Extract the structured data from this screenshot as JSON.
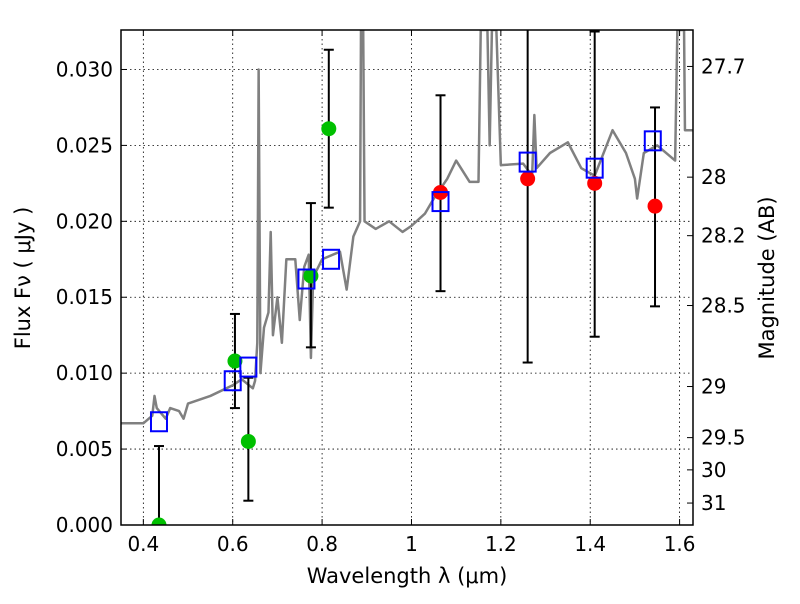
{
  "chart_data": {
    "type": "scatter",
    "xlabel": "Wavelength  λ (μm)",
    "ylabel": "Flux  Fν  ( μJy )",
    "ylabel_right": "Magnitude (AB)",
    "xlim": [
      0.35,
      1.63
    ],
    "ylim": [
      0,
      0.0326
    ],
    "grid": true,
    "x_ticks": [
      0.4,
      0.6,
      0.8,
      1.0,
      1.2,
      1.4,
      1.6
    ],
    "x_tick_labels": [
      "0.4",
      "0.6",
      "0.8",
      "1",
      "1.2",
      "1.4",
      "1.6"
    ],
    "y_ticks": [
      0,
      0.005,
      0.01,
      0.015,
      0.02,
      0.025,
      0.03
    ],
    "y_tick_labels": [
      "0.000",
      "0.005",
      "0.010",
      "0.015",
      "0.020",
      "0.025",
      "0.030"
    ],
    "right_ticks": [
      27.7,
      28,
      28.2,
      28.5,
      29,
      29.5,
      30,
      31
    ],
    "right_tick_labels": [
      "27.7",
      "28",
      "28.2",
      "28.5",
      "29",
      "29.5",
      "30",
      "31"
    ],
    "spectrum": {
      "name": "model spectrum",
      "color": "#808080",
      "x": [
        0.35,
        0.4,
        0.42,
        0.425,
        0.43,
        0.45,
        0.46,
        0.48,
        0.49,
        0.5,
        0.55,
        0.6,
        0.62,
        0.645,
        0.65,
        0.655,
        0.658,
        0.662,
        0.67,
        0.68,
        0.685,
        0.69,
        0.7,
        0.71,
        0.72,
        0.74,
        0.75,
        0.76,
        0.77,
        0.775,
        0.78,
        0.8,
        0.84,
        0.855,
        0.87,
        0.885,
        0.887,
        0.892,
        0.895,
        0.92,
        0.95,
        0.98,
        1.0,
        1.03,
        1.05,
        1.08,
        1.1,
        1.13,
        1.15,
        1.155,
        1.17,
        1.175,
        1.18,
        1.19,
        1.2,
        1.25,
        1.27,
        1.275,
        1.28,
        1.31,
        1.35,
        1.38,
        1.41,
        1.45,
        1.48,
        1.5,
        1.505,
        1.52,
        1.55,
        1.59,
        1.595,
        1.61,
        1.612,
        1.63
      ],
      "y": [
        0.0067,
        0.0067,
        0.0072,
        0.0085,
        0.0077,
        0.007,
        0.0077,
        0.0075,
        0.007,
        0.008,
        0.0085,
        0.0092,
        0.0096,
        0.009,
        0.0095,
        0.012,
        0.03,
        0.01,
        0.013,
        0.014,
        0.0193,
        0.0125,
        0.015,
        0.012,
        0.0175,
        0.0175,
        0.0135,
        0.017,
        0.0178,
        0.011,
        0.0163,
        0.0175,
        0.018,
        0.0155,
        0.019,
        0.02,
        0.0326,
        0.0326,
        0.02,
        0.0195,
        0.02,
        0.0193,
        0.0197,
        0.0205,
        0.0215,
        0.0228,
        0.024,
        0.0226,
        0.0226,
        0.0326,
        0.0326,
        0.025,
        0.0326,
        0.0326,
        0.0237,
        0.0238,
        0.023,
        0.027,
        0.0235,
        0.0245,
        0.0252,
        0.0235,
        0.023,
        0.026,
        0.0245,
        0.0228,
        0.0215,
        0.0245,
        0.025,
        0.024,
        0.0326,
        0.0326,
        0.026,
        0.026
      ]
    },
    "series": [
      {
        "name": "green photometry",
        "color": "#00c000",
        "marker": "circle",
        "x": [
          0.435,
          0.605,
          0.635,
          0.775,
          0.815
        ],
        "y": [
          0.0,
          0.0108,
          0.0055,
          0.0164,
          0.0261
        ],
        "err_low": [
          0.0,
          0.0077,
          0.0016,
          0.0117,
          0.0209
        ],
        "err_high": [
          0.0052,
          0.0139,
          0.0097,
          0.0212,
          0.0313
        ]
      },
      {
        "name": "red photometry",
        "color": "#ff0000",
        "marker": "circle",
        "x": [
          1.065,
          1.26,
          1.41,
          1.545
        ],
        "y": [
          0.0219,
          0.0228,
          0.0225,
          0.021
        ],
        "err_low": [
          0.0154,
          0.0107,
          0.0124,
          0.0144
        ],
        "err_high": [
          0.0283,
          0.034,
          0.0325,
          0.0275
        ]
      },
      {
        "name": "model band flux",
        "color": "#0000ff",
        "marker": "square",
        "x": [
          0.435,
          0.6,
          0.635,
          0.765,
          0.82,
          1.065,
          1.26,
          1.41,
          1.54
        ],
        "y": [
          0.0068,
          0.0095,
          0.0104,
          0.0162,
          0.0175,
          0.0213,
          0.0239,
          0.0235,
          0.0253
        ]
      }
    ]
  }
}
